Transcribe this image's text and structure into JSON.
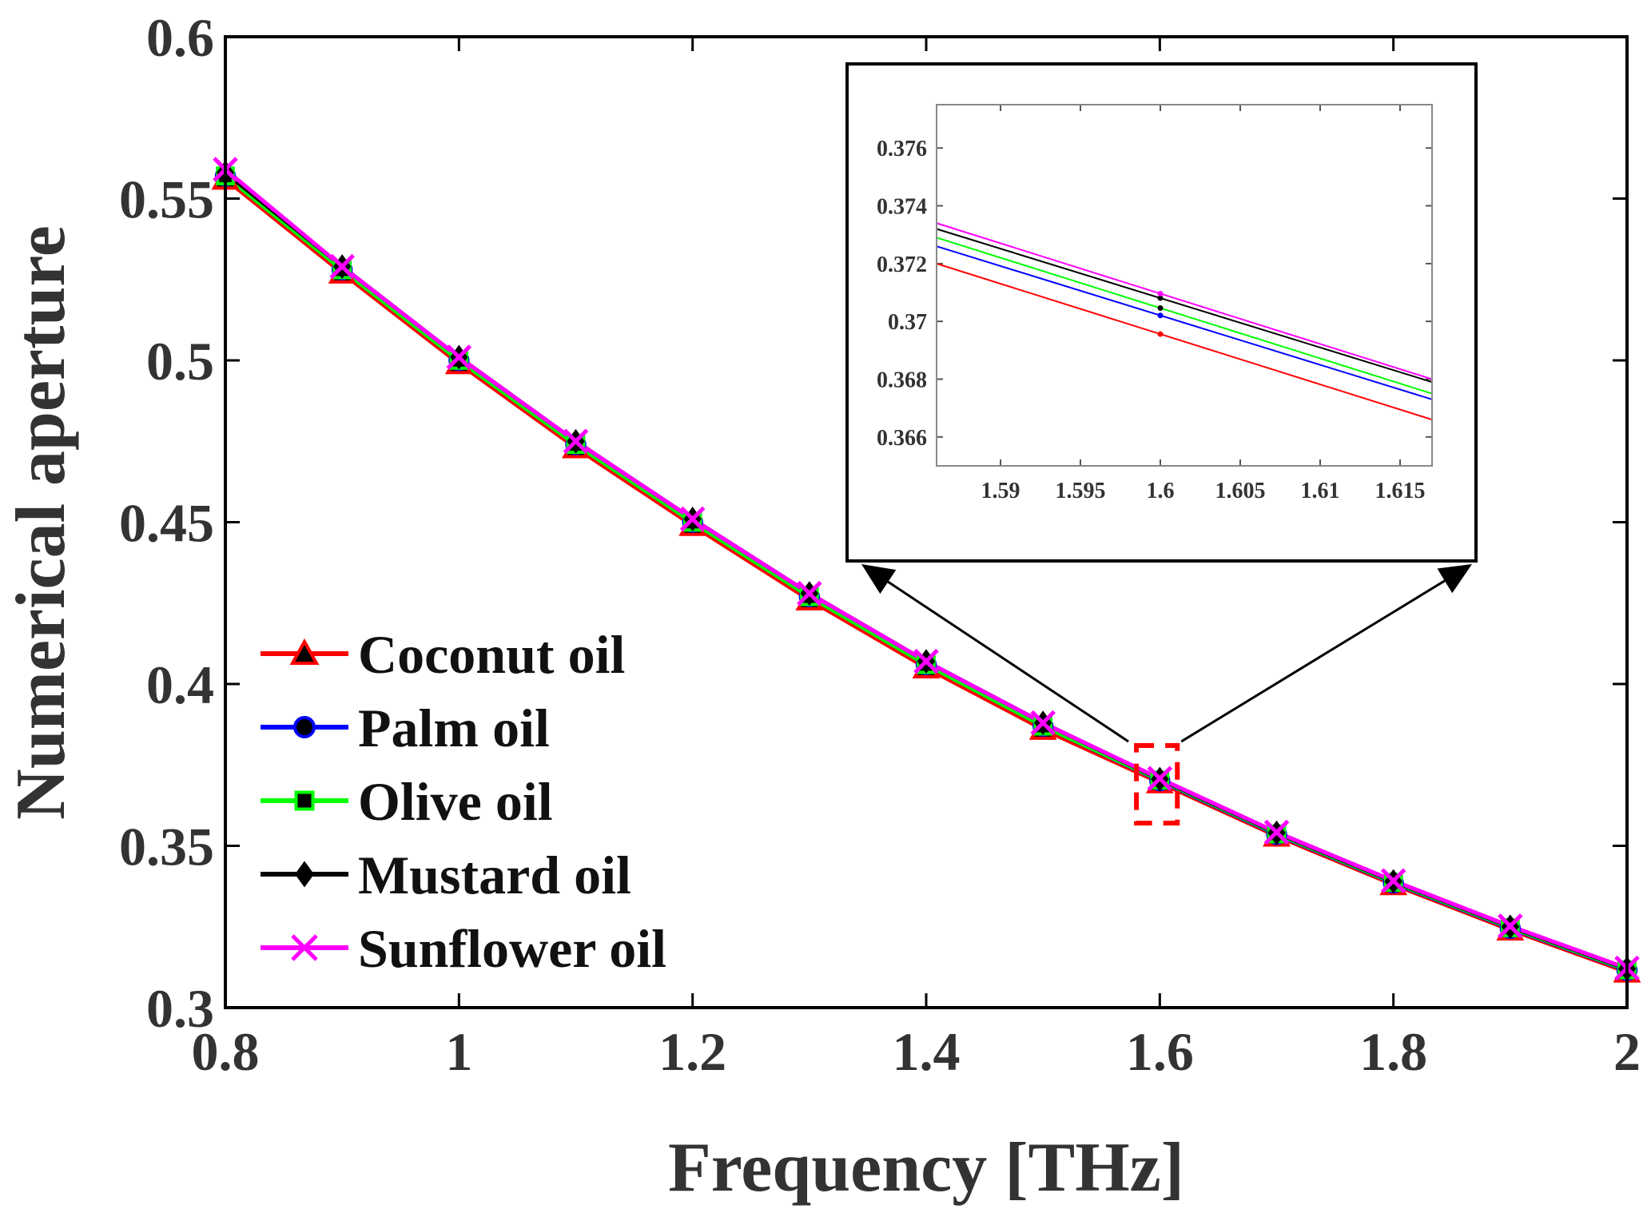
{
  "chart_data": {
    "type": "line",
    "title": "",
    "xlabel": "Frequency [THz]",
    "ylabel": "Numerical aperture",
    "xlim": [
      0.8,
      2.0
    ],
    "ylim": [
      0.3,
      0.6
    ],
    "x": [
      0.8,
      0.9,
      1.0,
      1.1,
      1.2,
      1.3,
      1.4,
      1.5,
      1.6,
      1.7,
      1.8,
      1.9,
      2.0
    ],
    "xticks": [
      "0.8",
      "1",
      "1.2",
      "1.4",
      "1.6",
      "1.8",
      "2"
    ],
    "yticks": [
      "0.3",
      "0.35",
      "0.4",
      "0.45",
      "0.5",
      "0.55",
      "0.6"
    ],
    "legend_position": "bottom-left",
    "series": [
      {
        "name": "Coconut oil",
        "color": "#ff0000",
        "marker": "triangle",
        "values": [
          0.556,
          0.527,
          0.499,
          0.473,
          0.449,
          0.426,
          0.405,
          0.386,
          0.3695,
          0.353,
          0.338,
          0.324,
          0.311
        ]
      },
      {
        "name": "Palm oil",
        "color": "#0000ff",
        "marker": "circle",
        "values": [
          0.557,
          0.528,
          0.5,
          0.474,
          0.45,
          0.427,
          0.406,
          0.387,
          0.3701,
          0.3535,
          0.3385,
          0.3245,
          0.3115
        ]
      },
      {
        "name": "Olive oil",
        "color": "#00ff00",
        "marker": "square",
        "values": [
          0.557,
          0.528,
          0.5,
          0.474,
          0.45,
          0.427,
          0.406,
          0.387,
          0.3703,
          0.3537,
          0.3387,
          0.3247,
          0.3117
        ]
      },
      {
        "name": "Mustard oil",
        "color": "#000000",
        "marker": "diamond",
        "values": [
          0.558,
          0.529,
          0.501,
          0.475,
          0.451,
          0.428,
          0.407,
          0.388,
          0.3706,
          0.354,
          0.339,
          0.325,
          0.312
        ]
      },
      {
        "name": "Sunflower oil",
        "color": "#ff00ff",
        "marker": "x",
        "values": [
          0.559,
          0.529,
          0.501,
          0.475,
          0.451,
          0.428,
          0.407,
          0.388,
          0.3708,
          0.3542,
          0.3392,
          0.3252,
          0.3122
        ]
      }
    ],
    "highlight_box": {
      "x": [
        1.58,
        1.615
      ],
      "y": [
        0.357,
        0.381
      ]
    },
    "inset": {
      "xlim": [
        1.586,
        1.617
      ],
      "ylim": [
        0.365,
        0.3775
      ],
      "xticks": [
        "1.59",
        "1.595",
        "1.6",
        "1.605",
        "1.61",
        "1.615"
      ],
      "yticks": [
        "0.366",
        "0.368",
        "0.37",
        "0.372",
        "0.374",
        "0.376"
      ],
      "marker_x": 1.6,
      "series": [
        {
          "name": "Coconut oil",
          "color": "#ff0000",
          "x": [
            1.586,
            1.617
          ],
          "values": [
            0.372,
            0.3666
          ]
        },
        {
          "name": "Palm oil",
          "color": "#0000ff",
          "x": [
            1.586,
            1.617
          ],
          "values": [
            0.3726,
            0.3673
          ]
        },
        {
          "name": "Olive oil",
          "color": "#00ff00",
          "x": [
            1.586,
            1.617
          ],
          "values": [
            0.3729,
            0.3675
          ]
        },
        {
          "name": "Mustard oil",
          "color": "#000000",
          "x": [
            1.586,
            1.617
          ],
          "values": [
            0.3732,
            0.3679
          ]
        },
        {
          "name": "Sunflower oil",
          "color": "#ff00ff",
          "x": [
            1.586,
            1.617
          ],
          "values": [
            0.3734,
            0.368
          ]
        }
      ]
    }
  }
}
